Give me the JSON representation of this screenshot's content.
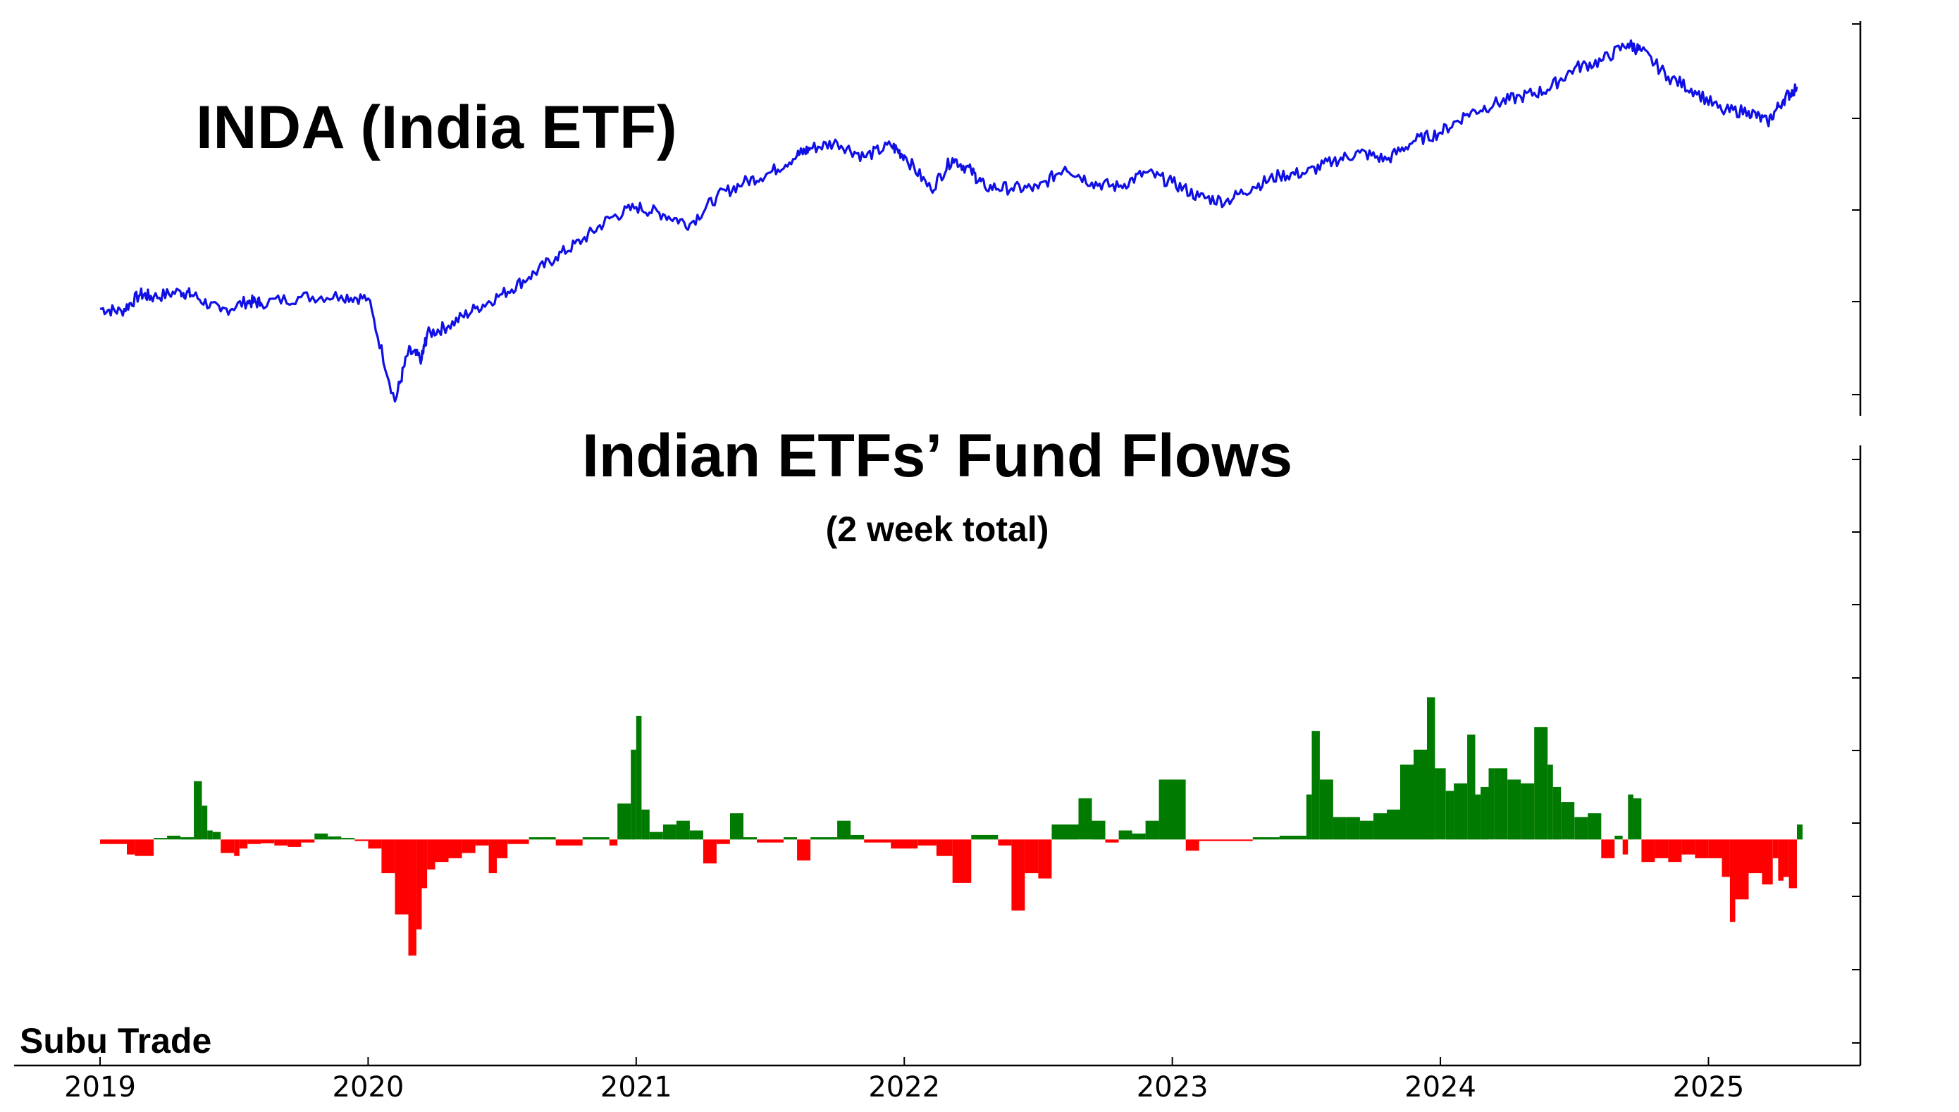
{
  "titles": {
    "price_title": "INDA (India ETF)",
    "flows_title": "Indian ETFs’ Fund Flows",
    "flows_subtitle": "(2 week total)",
    "watermark": "Subu Trade"
  },
  "colors": {
    "price_line": "#1010e6",
    "inflow": "#007a00",
    "outflow": "#ff0000",
    "axis": "#000000"
  },
  "chart_data": [
    {
      "type": "line",
      "title": "INDA (India ETF)",
      "xlabel": "",
      "ylabel": "",
      "x_ticks": [
        "2019",
        "2020",
        "2021",
        "2022",
        "2023",
        "2024",
        "2025"
      ],
      "xlim": [
        2019.0,
        2025.33
      ],
      "y_tick_labels_visible": false,
      "grid": false,
      "series": [
        {
          "x": [
            2019.0,
            2019.08,
            2019.15,
            2019.2,
            2019.3,
            2019.35,
            2019.45,
            2019.55,
            2019.6,
            2019.75,
            2019.9,
            2020.0,
            2020.1,
            2020.15,
            2020.2,
            2020.22,
            2020.3,
            2020.4,
            2020.5,
            2020.6,
            2020.7,
            2020.8,
            2020.9,
            2021.0,
            2021.1,
            2021.2,
            2021.3,
            2021.4,
            2021.5,
            2021.6,
            2021.65,
            2021.75,
            2021.85,
            2021.95,
            2022.0,
            2022.1,
            2022.18,
            2022.25,
            2022.3,
            2022.4,
            2022.5,
            2022.6,
            2022.7,
            2022.8,
            2022.9,
            2023.0,
            2023.1,
            2023.2,
            2023.3,
            2023.4,
            2023.5,
            2023.6,
            2023.7,
            2023.8,
            2023.9,
            2024.0,
            2024.1,
            2024.2,
            2024.3,
            2024.4,
            2024.5,
            2024.6,
            2024.7,
            2024.75,
            2024.85,
            2024.95,
            2025.05,
            2025.15,
            2025.22,
            2025.28,
            2025.33
          ],
          "values": [
            33.0,
            32.8,
            34.0,
            33.8,
            34.2,
            33.9,
            32.8,
            33.5,
            33.4,
            33.8,
            33.9,
            33.7,
            26.5,
            30.0,
            29.5,
            31.2,
            31.8,
            33.0,
            34.0,
            35.2,
            36.6,
            37.8,
            39.3,
            40.1,
            39.6,
            38.9,
            40.8,
            41.8,
            42.5,
            43.7,
            44.2,
            44.6,
            43.6,
            44.4,
            43.7,
            41.3,
            43.5,
            42.6,
            41.5,
            41.4,
            41.4,
            42.9,
            41.8,
            41.5,
            42.5,
            41.8,
            40.8,
            40.5,
            41.5,
            42.3,
            42.5,
            43.3,
            43.9,
            43.4,
            44.7,
            45.3,
            46.6,
            47.3,
            47.8,
            48.3,
            49.8,
            50.3,
            51.5,
            51.0,
            49.2,
            48.2,
            46.8,
            46.8,
            46.0,
            47.6,
            48.5
          ]
        }
      ]
    },
    {
      "type": "bar",
      "title": "Indian ETFs’ Fund Flows",
      "subtitle": "(2 week total)",
      "xlabel": "",
      "ylabel": "",
      "x_ticks": [
        "2019",
        "2020",
        "2021",
        "2022",
        "2023",
        "2024",
        "2025"
      ],
      "xlim": [
        2019.0,
        2025.33
      ],
      "ylim": [
        -300,
        500
      ],
      "y_tick_labels_visible": false,
      "positive_color": "#007a00",
      "negative_color": "#ff0000",
      "x": [
        2019.0,
        2019.05,
        2019.1,
        2019.13,
        2019.2,
        2019.25,
        2019.3,
        2019.35,
        2019.38,
        2019.4,
        2019.42,
        2019.45,
        2019.5,
        2019.52,
        2019.55,
        2019.6,
        2019.65,
        2019.7,
        2019.75,
        2019.8,
        2019.85,
        2019.9,
        2019.95,
        2020.0,
        2020.05,
        2020.1,
        2020.15,
        2020.18,
        2020.2,
        2020.22,
        2020.25,
        2020.3,
        2020.35,
        2020.4,
        2020.45,
        2020.48,
        2020.52,
        2020.6,
        2020.7,
        2020.8,
        2020.9,
        2020.93,
        2020.98,
        2021.0,
        2021.02,
        2021.05,
        2021.1,
        2021.15,
        2021.2,
        2021.25,
        2021.3,
        2021.35,
        2021.4,
        2021.45,
        2021.55,
        2021.6,
        2021.65,
        2021.75,
        2021.8,
        2021.85,
        2021.95,
        2022.05,
        2022.12,
        2022.18,
        2022.25,
        2022.35,
        2022.4,
        2022.45,
        2022.5,
        2022.55,
        2022.6,
        2022.65,
        2022.7,
        2022.75,
        2022.8,
        2022.85,
        2022.9,
        2022.95,
        2023.05,
        2023.1,
        2023.2,
        2023.3,
        2023.4,
        2023.5,
        2023.52,
        2023.55,
        2023.6,
        2023.65,
        2023.7,
        2023.75,
        2023.8,
        2023.85,
        2023.9,
        2023.95,
        2023.98,
        2024.02,
        2024.05,
        2024.1,
        2024.13,
        2024.15,
        2024.18,
        2024.2,
        2024.25,
        2024.3,
        2024.35,
        2024.4,
        2024.42,
        2024.45,
        2024.5,
        2024.55,
        2024.6,
        2024.65,
        2024.68,
        2024.7,
        2024.72,
        2024.75,
        2024.8,
        2024.85,
        2024.9,
        2024.95,
        2025.0,
        2025.05,
        2025.08,
        2025.1,
        2025.15,
        2025.2,
        2025.24,
        2025.26,
        2025.28,
        2025.3,
        2025.33
      ],
      "values": [
        -6,
        -6,
        -20,
        -22,
        2,
        5,
        3,
        78,
        45,
        12,
        10,
        -18,
        -22,
        -12,
        -6,
        -5,
        -8,
        -10,
        -4,
        8,
        4,
        2,
        -2,
        -12,
        -45,
        -100,
        -155,
        -120,
        -65,
        -40,
        -30,
        -25,
        -18,
        -8,
        -45,
        -25,
        -6,
        3,
        -8,
        3,
        -8,
        48,
        120,
        165,
        40,
        10,
        20,
        25,
        12,
        -32,
        -6,
        35,
        3,
        -4,
        3,
        -28,
        3,
        25,
        6,
        -4,
        -12,
        -8,
        -22,
        -58,
        6,
        -8,
        -95,
        -45,
        -52,
        20,
        20,
        55,
        25,
        -4,
        12,
        8,
        25,
        80,
        -15,
        -2,
        -2,
        3,
        5,
        60,
        145,
        80,
        30,
        30,
        25,
        35,
        40,
        100,
        120,
        190,
        95,
        65,
        75,
        140,
        60,
        70,
        95,
        95,
        80,
        75,
        150,
        100,
        70,
        50,
        30,
        35,
        -25,
        5,
        -20,
        60,
        55,
        -30,
        -25,
        -30,
        -20,
        -25,
        -25,
        -50,
        -110,
        -80,
        -45,
        -60,
        -25,
        -55,
        -50,
        -65,
        20
      ]
    }
  ]
}
